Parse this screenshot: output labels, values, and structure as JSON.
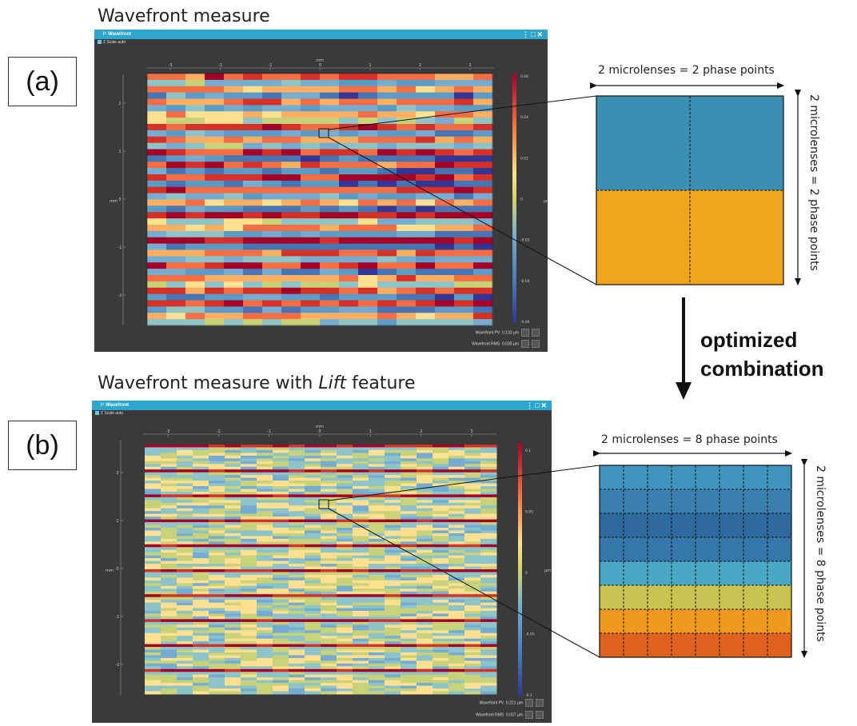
{
  "panel_a": {
    "heading": "Wavefront measure",
    "tag": "(a)",
    "window_title": "Wavefront",
    "scale_label": "Z Scale auto",
    "pv_label": "Wavefront PV",
    "pv_value": "0.133 µm",
    "rms_label": "Wavefront RMS",
    "rms_value": "0.035 µm",
    "xticks": [
      "-3",
      "-2",
      "-1",
      "0",
      "1",
      "2",
      "3"
    ],
    "yticks": [
      "2",
      "1",
      "0",
      "-1",
      "-2"
    ],
    "x_unit": "mm",
    "y_unit": "mm",
    "cbar_ticks": [
      "0.06",
      "0.04",
      "0.02",
      "0",
      "-0.02",
      "-0.04",
      "-0.06"
    ],
    "cbar_unit": "µm",
    "zoom_label": "2 microlenses = 2 phase points",
    "zoom_side_label": "2 microlenses = 2 phase points",
    "zoom_colors": [
      "#3a8fb3",
      "#f0a51e"
    ]
  },
  "panel_b": {
    "heading_pre": "Wavefront measure with ",
    "heading_em": "Lift",
    "heading_post": " feature",
    "tag": "(b)",
    "window_title": "Wavefront",
    "scale_label": "Z Scale auto",
    "pv_label": "Wavefront PV",
    "pv_value": "0.221 µm",
    "rms_label": "Wavefront RMS",
    "rms_value": "0.037 µm",
    "xticks": [
      "-3",
      "-2",
      "-1",
      "0",
      "1",
      "2",
      "3"
    ],
    "yticks": [
      "2",
      "1",
      "0",
      "-1",
      "-2"
    ],
    "x_unit": "mm",
    "y_unit": "mm",
    "cbar_ticks": [
      "0.1",
      "0.05",
      "0",
      "-0.05",
      "-0.1"
    ],
    "cbar_unit": "µm",
    "zoom_label": "2 microlenses = 8 phase points",
    "zoom_side_label": "2 microlenses = 8 phase points",
    "zoom_colors": [
      "#3f95bd",
      "#3a7fae",
      "#2f6a9e",
      "#3577a8",
      "#4aa7c4",
      "#c9c452",
      "#ef9a1e",
      "#e0621f"
    ]
  },
  "transition": {
    "line1": "optimized",
    "line2": "combination"
  },
  "colors": {
    "window_bg": "#3a3a3a",
    "titlebar": "#2ba6cf",
    "arrow": "#111111"
  }
}
